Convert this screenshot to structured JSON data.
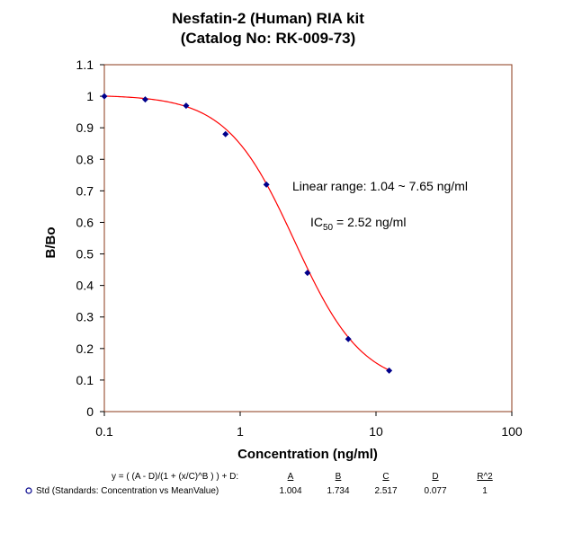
{
  "chart_data": {
    "type": "scatter",
    "title": [
      "Nesfatin-2 (Human)  RIA kit",
      "(Catalog No: RK-009-73)"
    ],
    "xlabel": "Concentration (ng/ml)",
    "ylabel": "B/Bo",
    "xscale": "log",
    "xlim": [
      0.1,
      100
    ],
    "ylim": [
      0,
      1.1
    ],
    "x_ticks": [
      "0.1",
      "1",
      "10",
      "100"
    ],
    "y_ticks": [
      "0",
      "0.1",
      "0.2",
      "0.3",
      "0.4",
      "0.5",
      "0.6",
      "0.7",
      "0.8",
      "0.9",
      "1",
      "1.1"
    ],
    "grid": false,
    "colors": {
      "points": "#00008b",
      "curve": "#ff0000",
      "frame": "#8b3a1a",
      "legend_marker": "#00008b"
    },
    "series": [
      {
        "x": [
          0.1,
          0.2,
          0.4,
          0.78,
          1.56,
          3.13,
          6.25,
          12.5
        ],
        "values": [
          1.0,
          0.99,
          0.97,
          0.88,
          0.72,
          0.44,
          0.23,
          0.13
        ]
      }
    ],
    "fit": {
      "A": 1.004,
      "B": 1.734,
      "C": 2.517,
      "D": 0.077,
      "R2": 1
    },
    "annotations": {
      "linear_range": "Linear range:  1.04 ~  7.65   ng/ml",
      "ic50_prefix": "IC",
      "ic50_sub": "50",
      "ic50_value": " = 2.52 ng/ml"
    },
    "fit_table": {
      "equation": "y = ( (A - D)/(1 + (x/C)^B ) ) + D:",
      "headers": [
        "A",
        "B",
        "C",
        "D",
        "R^2"
      ],
      "legend_label": "Std (Standards: Concentration vs MeanValue)",
      "values": [
        "1.004",
        "1.734",
        "2.517",
        "0.077",
        "1"
      ]
    }
  }
}
